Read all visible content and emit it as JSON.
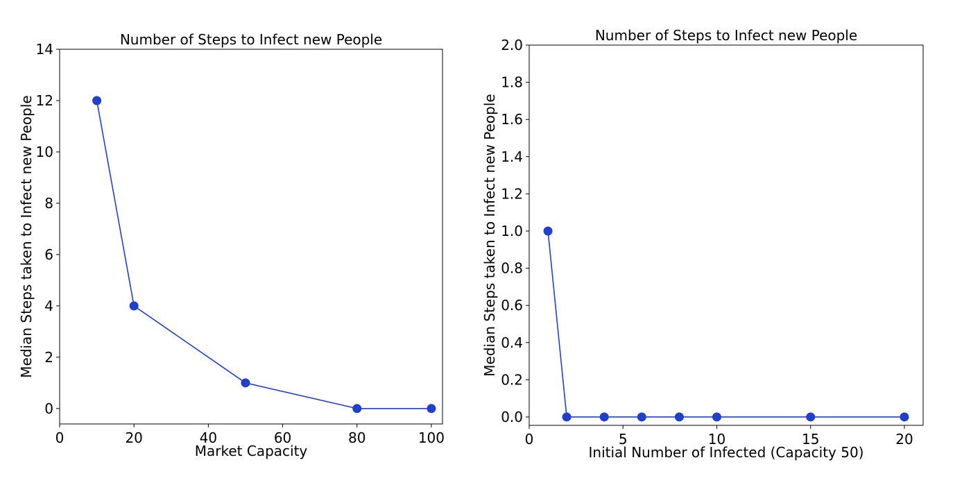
{
  "colors": {
    "series": "#1f3fcc",
    "axis": "#000000",
    "background": "#ffffff"
  },
  "chart_data": [
    {
      "type": "line",
      "title": "Number of Steps to Infect new People",
      "xlabel": "Market Capacity",
      "ylabel": "Median Steps taken to Infect new People",
      "xlim": [
        0,
        103
      ],
      "ylim": [
        -0.6,
        14
      ],
      "xticks": [
        0,
        20,
        40,
        60,
        80,
        100
      ],
      "yticks": [
        0,
        2,
        4,
        6,
        8,
        10,
        12,
        14
      ],
      "x": [
        10,
        20,
        50,
        80,
        100
      ],
      "series": [
        {
          "values": [
            12,
            4,
            1,
            0,
            0
          ]
        }
      ],
      "grid": false,
      "markers": "filled-circle"
    },
    {
      "type": "line",
      "title": "Number of Steps to Infect new People",
      "xlabel": "Initial Number of Infected (Capacity 50)",
      "ylabel": "Median Steps taken to Infect new People",
      "xlim": [
        0,
        21
      ],
      "ylim": [
        -0.045,
        2.0
      ],
      "xticks": [
        0,
        5,
        10,
        15,
        20
      ],
      "yticks": [
        0.0,
        0.2,
        0.4,
        0.6,
        0.8,
        1.0,
        1.2,
        1.4,
        1.6,
        1.8,
        2.0
      ],
      "x": [
        1,
        2,
        4,
        6,
        8,
        10,
        15,
        20
      ],
      "series": [
        {
          "values": [
            1,
            0,
            0,
            0,
            0,
            0,
            0,
            0
          ]
        }
      ],
      "grid": false,
      "markers": "filled-circle"
    }
  ]
}
